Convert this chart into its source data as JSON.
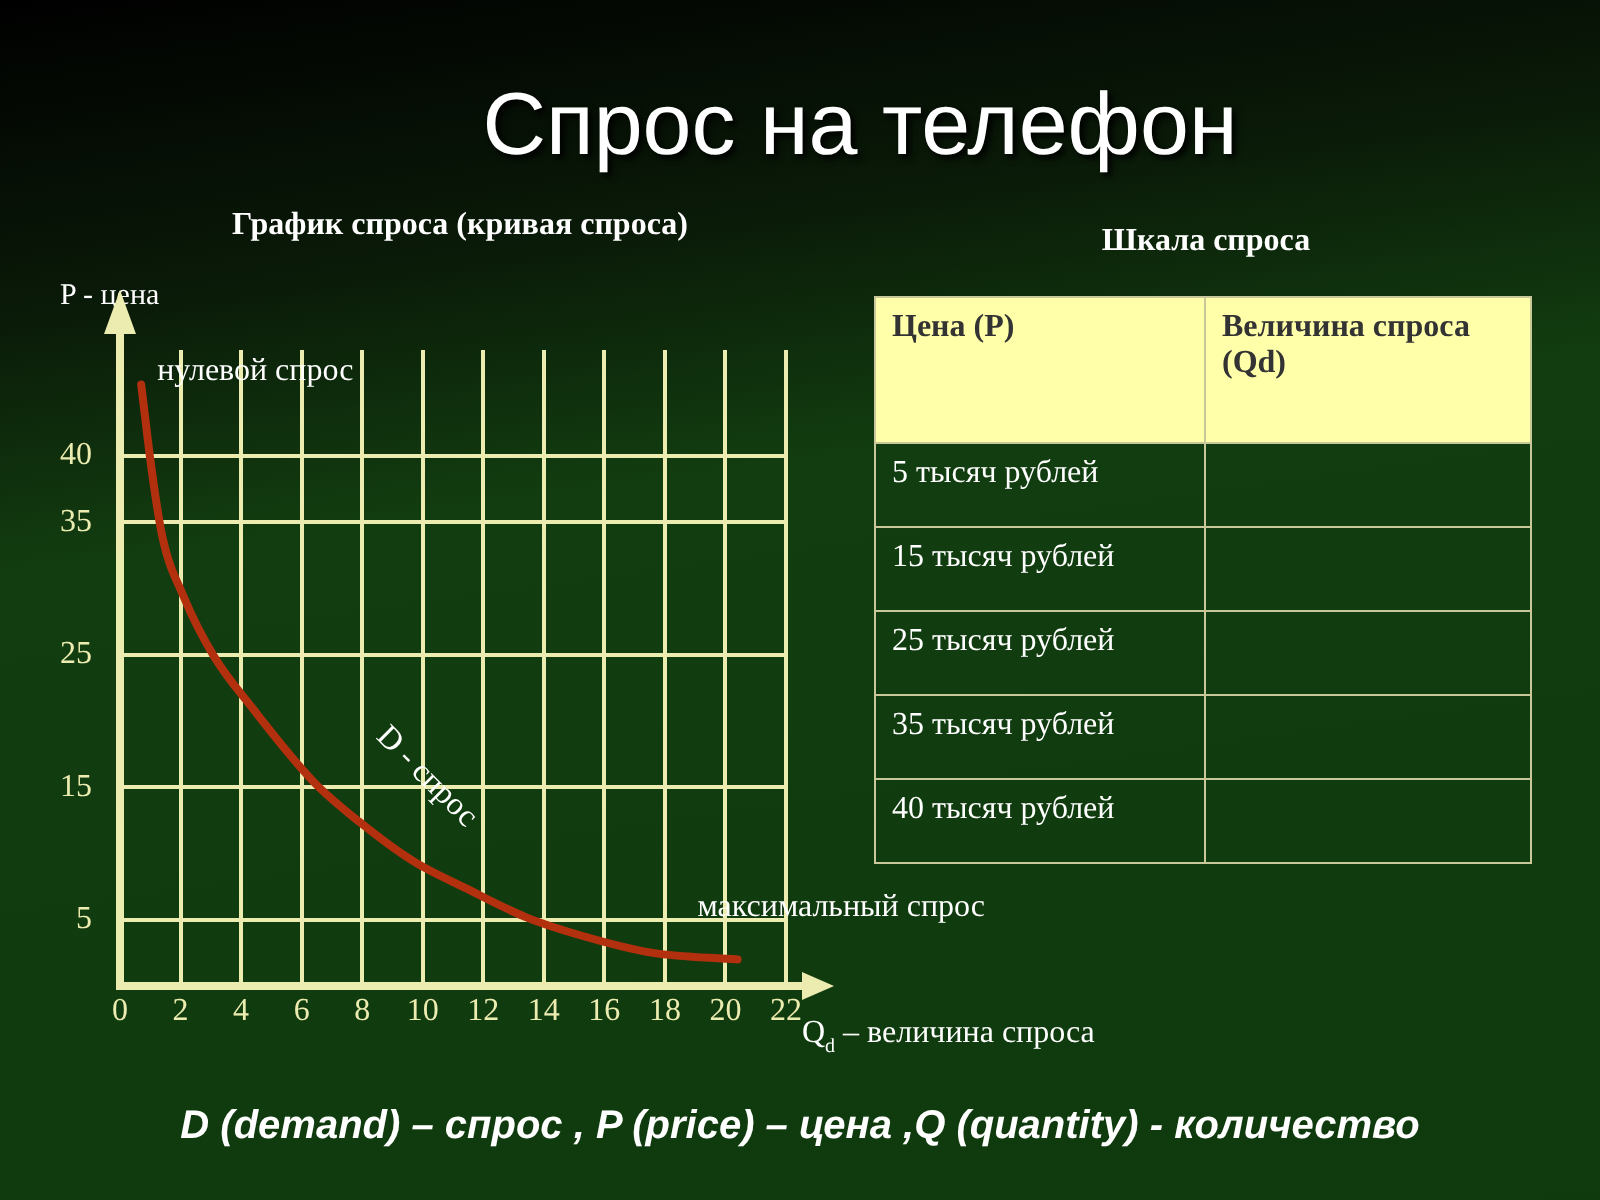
{
  "chart_data": {
    "type": "line",
    "title": "Спрос на телефон",
    "subtitle": "График спроса (кривая спроса)",
    "xlabel": "Q$_{d}$ – величина спроса",
    "ylabel": "P - цена",
    "x": [
      0.7,
      1.05,
      1.4,
      2.1,
      3.1,
      4.4,
      6.4,
      7.9,
      9.7,
      11.4,
      13.4,
      15.4,
      17.6,
      20.4
    ],
    "series": [
      {
        "color": "#b3300f",
        "values": [
          45.4,
          38.9,
          33.9,
          29.4,
          24.9,
          20.9,
          15.4,
          12.4,
          9.4,
          7.4,
          5.2,
          3.7,
          2.5,
          2.0
        ]
      }
    ],
    "xlim": [
      0,
      22
    ],
    "ylim": [
      0,
      48
    ],
    "xticks": [
      0,
      2,
      4,
      6,
      8,
      10,
      12,
      14,
      16,
      18,
      20,
      22
    ],
    "yticks": [
      5,
      15,
      25,
      35,
      40
    ],
    "grid": true,
    "legend": false,
    "marker": "none",
    "annotations": [
      {
        "text": "нулевой спрос",
        "x": 0.7,
        "y": 45.4
      },
      {
        "text": "D - спрос",
        "x": 7.9,
        "y": 12.4
      },
      {
        "text": "максимальный спрос",
        "x": 20.4,
        "y": 2.0
      },
      "Шкала спроса",
      "Цена (P)",
      "Величина спроса (Qd)",
      "5 тысяч рублей",
      "15 тысяч рублей",
      "25 тысяч рублей",
      "35 тысяч рублей",
      "40 тысяч рублей",
      "D (demand) – спрос , P (price) – цена ,Q (quantity) - количество"
    ]
  }
}
